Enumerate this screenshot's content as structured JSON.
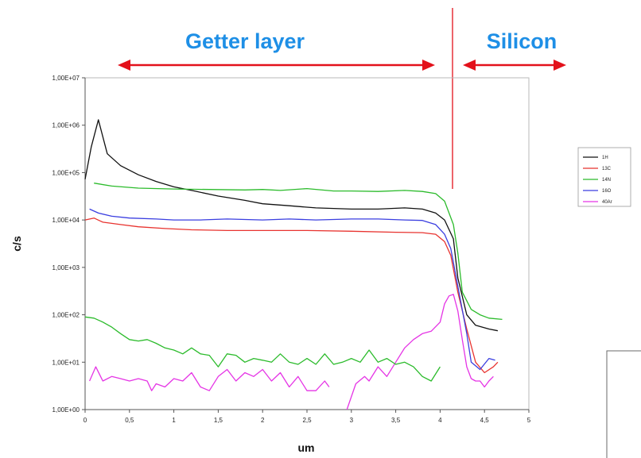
{
  "annotations": {
    "region_left": "Getter layer",
    "region_right": "Silicon",
    "arrow_color": "#e3111b",
    "region_text_color": "#1e8fe6"
  },
  "chart_data": {
    "type": "line",
    "title": "",
    "xlabel": "um",
    "ylabel": "c/s",
    "xlim": [
      0,
      5
    ],
    "ylim": [
      1,
      10000000
    ],
    "yscale": "log",
    "grid": false,
    "legend_position": "right",
    "x_ticks": [
      "0",
      "0,5",
      "1",
      "1,5",
      "2",
      "2,5",
      "3",
      "3,5",
      "4",
      "4,5",
      "5"
    ],
    "y_ticks": [
      "1,00E+00",
      "1,00E+01",
      "1,00E+02",
      "1,00E+03",
      "1,00E+04",
      "1,00E+05",
      "1,00E+06",
      "1,00E+07"
    ],
    "series": [
      {
        "name": "1H",
        "color": "#111111",
        "points": [
          [
            0,
            72000
          ],
          [
            0.07,
            350000
          ],
          [
            0.15,
            1300000
          ],
          [
            0.25,
            250000
          ],
          [
            0.4,
            140000
          ],
          [
            0.6,
            90000
          ],
          [
            0.8,
            65000
          ],
          [
            1.0,
            50000
          ],
          [
            1.2,
            42000
          ],
          [
            1.5,
            32000
          ],
          [
            1.8,
            26000
          ],
          [
            2.0,
            22000
          ],
          [
            2.3,
            20000
          ],
          [
            2.6,
            18000
          ],
          [
            3.0,
            17000
          ],
          [
            3.3,
            17000
          ],
          [
            3.6,
            18000
          ],
          [
            3.8,
            17000
          ],
          [
            3.95,
            14000
          ],
          [
            4.05,
            10000
          ],
          [
            4.15,
            4000
          ],
          [
            4.2,
            600
          ],
          [
            4.3,
            100
          ],
          [
            4.4,
            60
          ],
          [
            4.55,
            50
          ],
          [
            4.65,
            46
          ]
        ]
      },
      {
        "name": "13C",
        "color": "#e8332f",
        "points": [
          [
            0,
            10000
          ],
          [
            0.1,
            11000
          ],
          [
            0.2,
            9000
          ],
          [
            0.4,
            8000
          ],
          [
            0.6,
            7200
          ],
          [
            0.9,
            6600
          ],
          [
            1.2,
            6200
          ],
          [
            1.6,
            6000
          ],
          [
            2.0,
            6000
          ],
          [
            2.5,
            6000
          ],
          [
            3.0,
            5800
          ],
          [
            3.5,
            5500
          ],
          [
            3.8,
            5400
          ],
          [
            3.95,
            5000
          ],
          [
            4.05,
            3500
          ],
          [
            4.12,
            1800
          ],
          [
            4.2,
            300
          ],
          [
            4.3,
            50
          ],
          [
            4.4,
            10
          ],
          [
            4.5,
            6
          ],
          [
            4.6,
            8
          ],
          [
            4.65,
            10
          ]
        ]
      },
      {
        "name": "14N",
        "color": "#2bbb2b",
        "points": [
          [
            0.1,
            60000
          ],
          [
            0.3,
            52000
          ],
          [
            0.6,
            47000
          ],
          [
            1.0,
            45000
          ],
          [
            1.4,
            44000
          ],
          [
            1.8,
            43000
          ],
          [
            2.0,
            44000
          ],
          [
            2.2,
            42000
          ],
          [
            2.5,
            46000
          ],
          [
            2.8,
            41000
          ],
          [
            3.0,
            41000
          ],
          [
            3.3,
            40000
          ],
          [
            3.6,
            42000
          ],
          [
            3.8,
            40000
          ],
          [
            3.95,
            36000
          ],
          [
            4.05,
            25000
          ],
          [
            4.15,
            8000
          ],
          [
            4.2,
            2000
          ],
          [
            4.25,
            300
          ],
          [
            4.35,
            130
          ],
          [
            4.45,
            100
          ],
          [
            4.55,
            85
          ],
          [
            4.7,
            80
          ]
        ]
      },
      {
        "name": "16O",
        "color": "#3a3ee0",
        "points": [
          [
            0.05,
            17000
          ],
          [
            0.15,
            14000
          ],
          [
            0.3,
            12000
          ],
          [
            0.5,
            11000
          ],
          [
            0.8,
            10500
          ],
          [
            1.0,
            10000
          ],
          [
            1.3,
            10000
          ],
          [
            1.6,
            10500
          ],
          [
            2.0,
            10000
          ],
          [
            2.3,
            10500
          ],
          [
            2.6,
            10000
          ],
          [
            3.0,
            10500
          ],
          [
            3.3,
            10500
          ],
          [
            3.6,
            10000
          ],
          [
            3.8,
            9800
          ],
          [
            3.95,
            8000
          ],
          [
            4.05,
            5000
          ],
          [
            4.12,
            2500
          ],
          [
            4.2,
            400
          ],
          [
            4.3,
            40
          ],
          [
            4.35,
            10
          ],
          [
            4.45,
            7
          ],
          [
            4.55,
            12
          ],
          [
            4.62,
            11
          ]
        ]
      },
      {
        "name": "40Ar",
        "color": "#e534e5",
        "segments": [
          [
            [
              0.05,
              4
            ],
            [
              0.12,
              8
            ],
            [
              0.2,
              4
            ],
            [
              0.3,
              5
            ],
            [
              0.4,
              4.5
            ],
            [
              0.5,
              4
            ],
            [
              0.6,
              4.5
            ],
            [
              0.7,
              4
            ],
            [
              0.75,
              2.5
            ],
            [
              0.8,
              3.5
            ],
            [
              0.9,
              3
            ],
            [
              1.0,
              4.5
            ],
            [
              1.1,
              4
            ],
            [
              1.2,
              6
            ],
            [
              1.3,
              3
            ],
            [
              1.4,
              2.5
            ],
            [
              1.5,
              5
            ],
            [
              1.6,
              7
            ],
            [
              1.7,
              4
            ],
            [
              1.8,
              6
            ],
            [
              1.9,
              5
            ],
            [
              2.0,
              7
            ],
            [
              2.1,
              4
            ],
            [
              2.2,
              6
            ],
            [
              2.3,
              3
            ],
            [
              2.4,
              5
            ],
            [
              2.5,
              2.5
            ],
            [
              2.6,
              2.5
            ],
            [
              2.7,
              4
            ],
            [
              2.75,
              3
            ]
          ],
          [
            [
              2.95,
              1
            ],
            [
              3.05,
              3.5
            ],
            [
              3.15,
              5
            ],
            [
              3.2,
              4
            ],
            [
              3.3,
              8
            ],
            [
              3.4,
              5
            ],
            [
              3.5,
              10
            ],
            [
              3.6,
              20
            ],
            [
              3.7,
              30
            ],
            [
              3.8,
              40
            ],
            [
              3.9,
              45
            ],
            [
              4.0,
              70
            ],
            [
              4.05,
              170
            ],
            [
              4.1,
              250
            ],
            [
              4.15,
              270
            ],
            [
              4.2,
              120
            ],
            [
              4.25,
              30
            ],
            [
              4.3,
              8
            ],
            [
              4.35,
              4.5
            ],
            [
              4.4,
              4
            ],
            [
              4.45,
              4
            ],
            [
              4.5,
              3
            ],
            [
              4.55,
              4
            ],
            [
              4.6,
              5
            ]
          ]
        ]
      },
      {
        "name": "",
        "color": "#2bbb2b",
        "points": [
          [
            0,
            90
          ],
          [
            0.1,
            85
          ],
          [
            0.2,
            70
          ],
          [
            0.3,
            55
          ],
          [
            0.4,
            40
          ],
          [
            0.5,
            30
          ],
          [
            0.6,
            28
          ],
          [
            0.7,
            30
          ],
          [
            0.8,
            25
          ],
          [
            0.9,
            20
          ],
          [
            1.0,
            18
          ],
          [
            1.1,
            15
          ],
          [
            1.2,
            20
          ],
          [
            1.3,
            15
          ],
          [
            1.4,
            14
          ],
          [
            1.5,
            8
          ],
          [
            1.6,
            15
          ],
          [
            1.7,
            14
          ],
          [
            1.8,
            10
          ],
          [
            1.9,
            12
          ],
          [
            2.0,
            11
          ],
          [
            2.1,
            10
          ],
          [
            2.2,
            15
          ],
          [
            2.3,
            10
          ],
          [
            2.4,
            9
          ],
          [
            2.5,
            12
          ],
          [
            2.6,
            9
          ],
          [
            2.7,
            15
          ],
          [
            2.8,
            9
          ],
          [
            2.9,
            10
          ],
          [
            3.0,
            12
          ],
          [
            3.1,
            10
          ],
          [
            3.2,
            18
          ],
          [
            3.3,
            10
          ],
          [
            3.4,
            12
          ],
          [
            3.5,
            9
          ],
          [
            3.6,
            10
          ],
          [
            3.7,
            8
          ],
          [
            3.8,
            5
          ],
          [
            3.9,
            4
          ],
          [
            4.0,
            8
          ]
        ]
      }
    ]
  }
}
